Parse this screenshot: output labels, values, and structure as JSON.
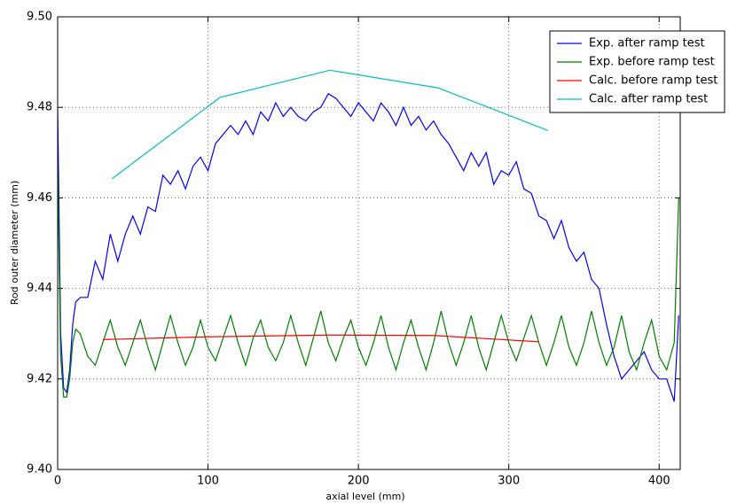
{
  "chart_data": {
    "type": "line",
    "xlabel": "axial level (mm)",
    "ylabel": "Rod outer diameter (mm)",
    "xlim": [
      0,
      414
    ],
    "ylim": [
      9.4,
      9.5
    ],
    "xticks": [
      0,
      100,
      200,
      300,
      400
    ],
    "yticks": [
      {
        "value": 9.4,
        "label": "9.40"
      },
      9.42,
      9.44,
      9.46,
      9.48,
      {
        "value": 9.5,
        "label": "9.50"
      }
    ],
    "grid": true,
    "legend": "upper right",
    "series": [
      {
        "name": "Exp. after ramp test",
        "color": "#0000ff",
        "x": [
          0,
          2,
          4,
          6,
          8,
          10,
          12,
          15,
          20,
          25,
          30,
          35,
          40,
          45,
          50,
          55,
          60,
          65,
          70,
          75,
          80,
          85,
          90,
          95,
          100,
          105,
          110,
          115,
          120,
          125,
          130,
          135,
          140,
          145,
          150,
          155,
          160,
          165,
          170,
          175,
          180,
          185,
          190,
          195,
          200,
          205,
          210,
          215,
          220,
          225,
          230,
          235,
          240,
          245,
          250,
          255,
          260,
          265,
          270,
          275,
          280,
          285,
          290,
          295,
          300,
          305,
          310,
          315,
          320,
          325,
          330,
          335,
          340,
          345,
          350,
          355,
          360,
          365,
          370,
          375,
          380,
          385,
          390,
          395,
          400,
          405,
          410,
          413
        ],
        "values": [
          9.48,
          9.43,
          9.418,
          9.417,
          9.422,
          9.432,
          9.437,
          9.438,
          9.438,
          9.446,
          9.442,
          9.452,
          9.446,
          9.452,
          9.456,
          9.452,
          9.458,
          9.457,
          9.465,
          9.463,
          9.466,
          9.462,
          9.467,
          9.469,
          9.466,
          9.472,
          9.474,
          9.476,
          9.474,
          9.477,
          9.474,
          9.479,
          9.477,
          9.481,
          9.478,
          9.48,
          9.478,
          9.477,
          9.479,
          9.48,
          9.483,
          9.482,
          9.48,
          9.478,
          9.481,
          9.479,
          9.477,
          9.481,
          9.479,
          9.476,
          9.48,
          9.476,
          9.478,
          9.475,
          9.477,
          9.474,
          9.472,
          9.469,
          9.466,
          9.47,
          9.467,
          9.47,
          9.463,
          9.466,
          9.465,
          9.468,
          9.462,
          9.461,
          9.456,
          9.455,
          9.451,
          9.455,
          9.449,
          9.446,
          9.448,
          9.442,
          9.44,
          9.432,
          9.425,
          9.42,
          9.422,
          9.424,
          9.426,
          9.422,
          9.42,
          9.42,
          9.415,
          9.434
        ]
      },
      {
        "name": "Exp. before ramp test",
        "color": "#008000",
        "x": [
          0,
          2,
          4,
          6,
          8,
          10,
          12,
          15,
          20,
          25,
          30,
          35,
          40,
          45,
          50,
          55,
          60,
          65,
          70,
          75,
          80,
          85,
          90,
          95,
          100,
          105,
          110,
          115,
          120,
          125,
          130,
          135,
          140,
          145,
          150,
          155,
          160,
          165,
          170,
          175,
          180,
          185,
          190,
          195,
          200,
          205,
          210,
          215,
          220,
          225,
          230,
          235,
          240,
          245,
          250,
          255,
          260,
          265,
          270,
          275,
          280,
          285,
          290,
          295,
          300,
          305,
          310,
          315,
          320,
          325,
          330,
          335,
          340,
          345,
          350,
          355,
          360,
          365,
          370,
          375,
          380,
          385,
          390,
          395,
          400,
          405,
          410,
          413
        ],
        "values": [
          9.467,
          9.425,
          9.416,
          9.416,
          9.42,
          9.428,
          9.431,
          9.43,
          9.425,
          9.423,
          9.428,
          9.433,
          9.427,
          9.423,
          9.428,
          9.433,
          9.427,
          9.422,
          9.428,
          9.434,
          9.428,
          9.423,
          9.427,
          9.433,
          9.427,
          9.424,
          9.429,
          9.434,
          9.428,
          9.423,
          9.429,
          9.433,
          9.427,
          9.424,
          9.428,
          9.434,
          9.428,
          9.423,
          9.429,
          9.435,
          9.428,
          9.424,
          9.429,
          9.433,
          9.427,
          9.423,
          9.428,
          9.434,
          9.427,
          9.422,
          9.428,
          9.433,
          9.427,
          9.422,
          9.428,
          9.435,
          9.428,
          9.423,
          9.428,
          9.434,
          9.427,
          9.422,
          9.428,
          9.434,
          9.428,
          9.424,
          9.429,
          9.434,
          9.428,
          9.423,
          9.428,
          9.434,
          9.427,
          9.423,
          9.428,
          9.435,
          9.428,
          9.423,
          9.427,
          9.434,
          9.426,
          9.422,
          9.428,
          9.433,
          9.425,
          9.422,
          9.428,
          9.46
        ]
      },
      {
        "name": "Calc. before ramp test",
        "color": "#ff0000",
        "x": [
          30,
          100,
          180,
          250,
          290,
          320
        ],
        "values": [
          9.4287,
          9.4293,
          9.4297,
          9.4296,
          9.4288,
          9.4282
        ]
      },
      {
        "name": "Calc. after ramp test",
        "color": "#00bfbf",
        "x": [
          36,
          108,
          181,
          253,
          326
        ],
        "values": [
          9.4642,
          9.4822,
          9.4882,
          9.4843,
          9.4749
        ]
      }
    ]
  }
}
